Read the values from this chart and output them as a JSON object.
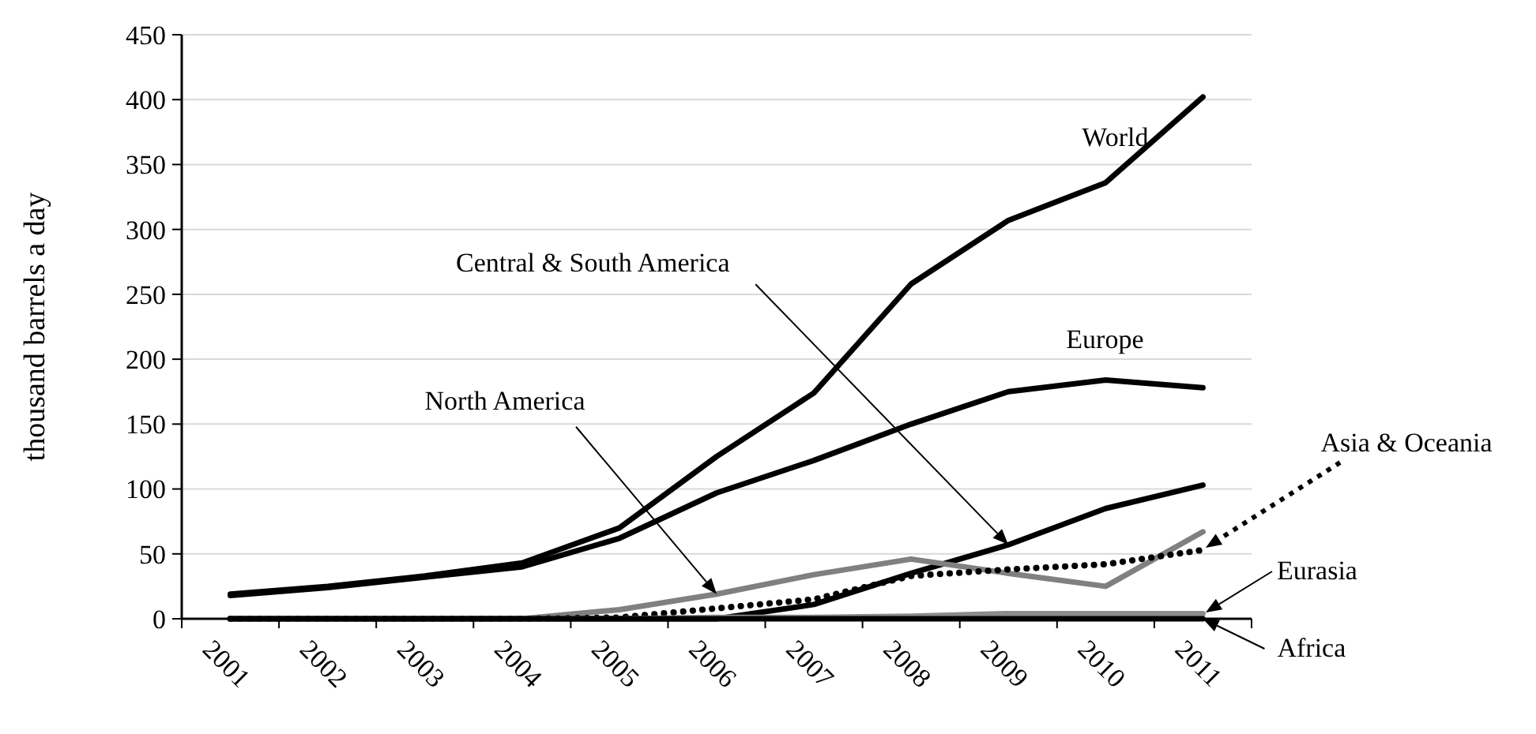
{
  "chart_data": {
    "type": "line",
    "ylabel": "thousand barrels a day",
    "categories": [
      "2001",
      "2002",
      "2003",
      "2004",
      "2005",
      "2006",
      "2007",
      "2008",
      "2009",
      "2010",
      "2011"
    ],
    "ylim": [
      0,
      450
    ],
    "yticks": [
      0,
      50,
      100,
      150,
      200,
      250,
      300,
      350,
      400,
      450
    ],
    "grid": "y",
    "marker": "none",
    "series": [
      {
        "color": "#000000",
        "values": [
          19,
          25,
          33,
          43,
          70,
          125,
          174,
          258,
          307,
          336,
          402
        ]
      },
      {
        "color": "#000000",
        "values": [
          18,
          24,
          32,
          40,
          62,
          97,
          122,
          150,
          175,
          184,
          178
        ]
      },
      {
        "color": "#000000",
        "values": [
          0,
          0,
          0,
          0,
          0,
          0,
          11,
          35,
          57,
          85,
          103
        ]
      },
      {
        "color": "#808080",
        "values": [
          0,
          0,
          0,
          0,
          7,
          19,
          34,
          46,
          35,
          25,
          67
        ]
      },
      {
        "color": "#000000",
        "line_style": "dotted",
        "values": [
          0,
          0,
          0,
          0,
          1,
          8,
          15,
          33,
          38,
          42,
          53
        ]
      },
      {
        "color": "#8c8c8c",
        "values": [
          0,
          0,
          0,
          0,
          0,
          1,
          1,
          2,
          4,
          4,
          4
        ]
      },
      {
        "color": "#000000",
        "values": [
          0,
          0,
          0,
          0,
          0,
          0,
          0,
          0,
          0,
          0,
          0
        ]
      }
    ],
    "annotations": [
      {
        "text": "World",
        "x": "2010",
        "y": 336
      },
      {
        "text": "Europe",
        "x": "2010",
        "y": 184
      },
      {
        "text": "Central & South America",
        "x": "2009",
        "y": 57
      },
      {
        "text": "North America",
        "x": "2006",
        "y": 19
      },
      "Asia & Oceania",
      "Eurasia",
      {
        "text": "Africa",
        "x": "2011",
        "y": 0
      }
    ]
  }
}
